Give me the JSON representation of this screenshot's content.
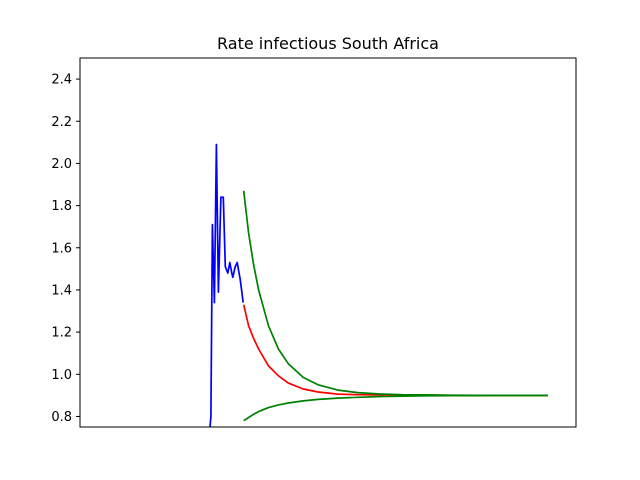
{
  "chart_data": {
    "type": "line",
    "title": "Rate infectious South Africa",
    "xlabel": "",
    "ylabel": "",
    "xlim": [
      0,
      100
    ],
    "ylim": [
      0.75,
      2.5
    ],
    "grid": false,
    "legend": "none",
    "x_ticks": [],
    "y_ticks": [
      0.8,
      1.0,
      1.2,
      1.4,
      1.6,
      1.8,
      2.0,
      2.2,
      2.4
    ],
    "y_tick_labels": [
      "0.8",
      "1.0",
      "1.2",
      "1.4",
      "1.6",
      "1.8",
      "2.0",
      "2.2",
      "2.4"
    ],
    "series": [
      {
        "color": "#0000ff",
        "x": [
          26.2,
          26.4,
          26.7,
          27.1,
          27.5,
          27.9,
          28.4,
          28.9,
          29.3,
          29.8,
          30.2,
          30.6,
          30.8,
          31.3,
          31.7,
          32.3,
          32.9
        ],
        "y": [
          0.75,
          0.8,
          1.71,
          1.34,
          2.09,
          1.39,
          1.84,
          1.84,
          1.51,
          1.48,
          1.53,
          1.48,
          1.46,
          1.51,
          1.53,
          1.45,
          1.34
        ]
      },
      {
        "color": "#ff0000",
        "x": [
          33.0,
          34,
          35,
          36,
          38,
          40,
          42,
          45,
          48,
          52,
          56,
          60,
          65,
          70,
          75,
          80,
          85,
          90,
          94.3
        ],
        "y": [
          1.33,
          1.23,
          1.17,
          1.12,
          1.04,
          0.993,
          0.958,
          0.93,
          0.916,
          0.906,
          0.903,
          0.902,
          0.901,
          0.9,
          0.9,
          0.9,
          0.9,
          0.9,
          0.9
        ]
      },
      {
        "color": "#008000",
        "x": [
          33.0,
          34,
          35,
          36,
          38,
          40,
          42,
          45,
          48,
          52,
          56,
          60,
          65,
          70,
          75,
          80,
          85,
          90,
          94.3
        ],
        "y": [
          1.87,
          1.67,
          1.52,
          1.4,
          1.23,
          1.12,
          1.05,
          0.985,
          0.95,
          0.925,
          0.913,
          0.907,
          0.903,
          0.902,
          0.901,
          0.9,
          0.9,
          0.9,
          0.9
        ]
      },
      {
        "color": "#008000",
        "x": [
          33.0,
          34,
          35,
          36,
          38,
          40,
          42,
          45,
          48,
          52,
          56,
          60,
          65,
          70,
          75,
          80,
          85,
          90,
          94.3
        ],
        "y": [
          0.78,
          0.795,
          0.81,
          0.823,
          0.842,
          0.855,
          0.864,
          0.874,
          0.881,
          0.887,
          0.891,
          0.894,
          0.896,
          0.898,
          0.899,
          0.899,
          0.9,
          0.9,
          0.9
        ]
      }
    ]
  }
}
